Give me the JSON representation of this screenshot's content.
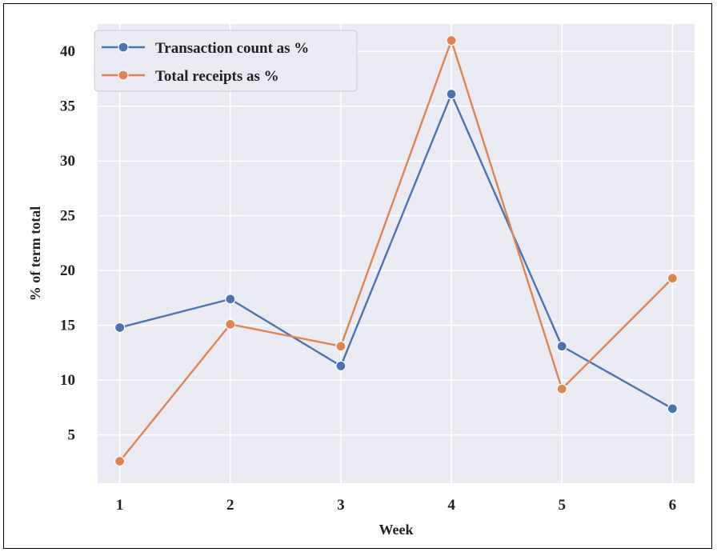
{
  "chart_data": {
    "type": "line",
    "x": [
      1,
      2,
      3,
      4,
      5,
      6
    ],
    "series": [
      {
        "name": "Transaction count as %",
        "values": [
          14.8,
          17.4,
          11.3,
          36.1,
          13.1,
          7.4
        ],
        "color": "#4c72b0"
      },
      {
        "name": "Total receipts as %",
        "values": [
          2.6,
          15.1,
          13.1,
          41.0,
          9.2,
          19.3
        ],
        "color": "#dd8452"
      }
    ],
    "xticks": [
      "1",
      "2",
      "3",
      "4",
      "5",
      "6"
    ],
    "yticks": [
      "5",
      "10",
      "15",
      "20",
      "25",
      "30",
      "35",
      "40"
    ],
    "xlabel": "Week",
    "ylabel": "% of term total",
    "xlim": [
      0.8,
      6.2
    ],
    "ylim": [
      0.6,
      42.5
    ],
    "grid": true,
    "legend": "top-left",
    "background": "#eaeaf2"
  }
}
